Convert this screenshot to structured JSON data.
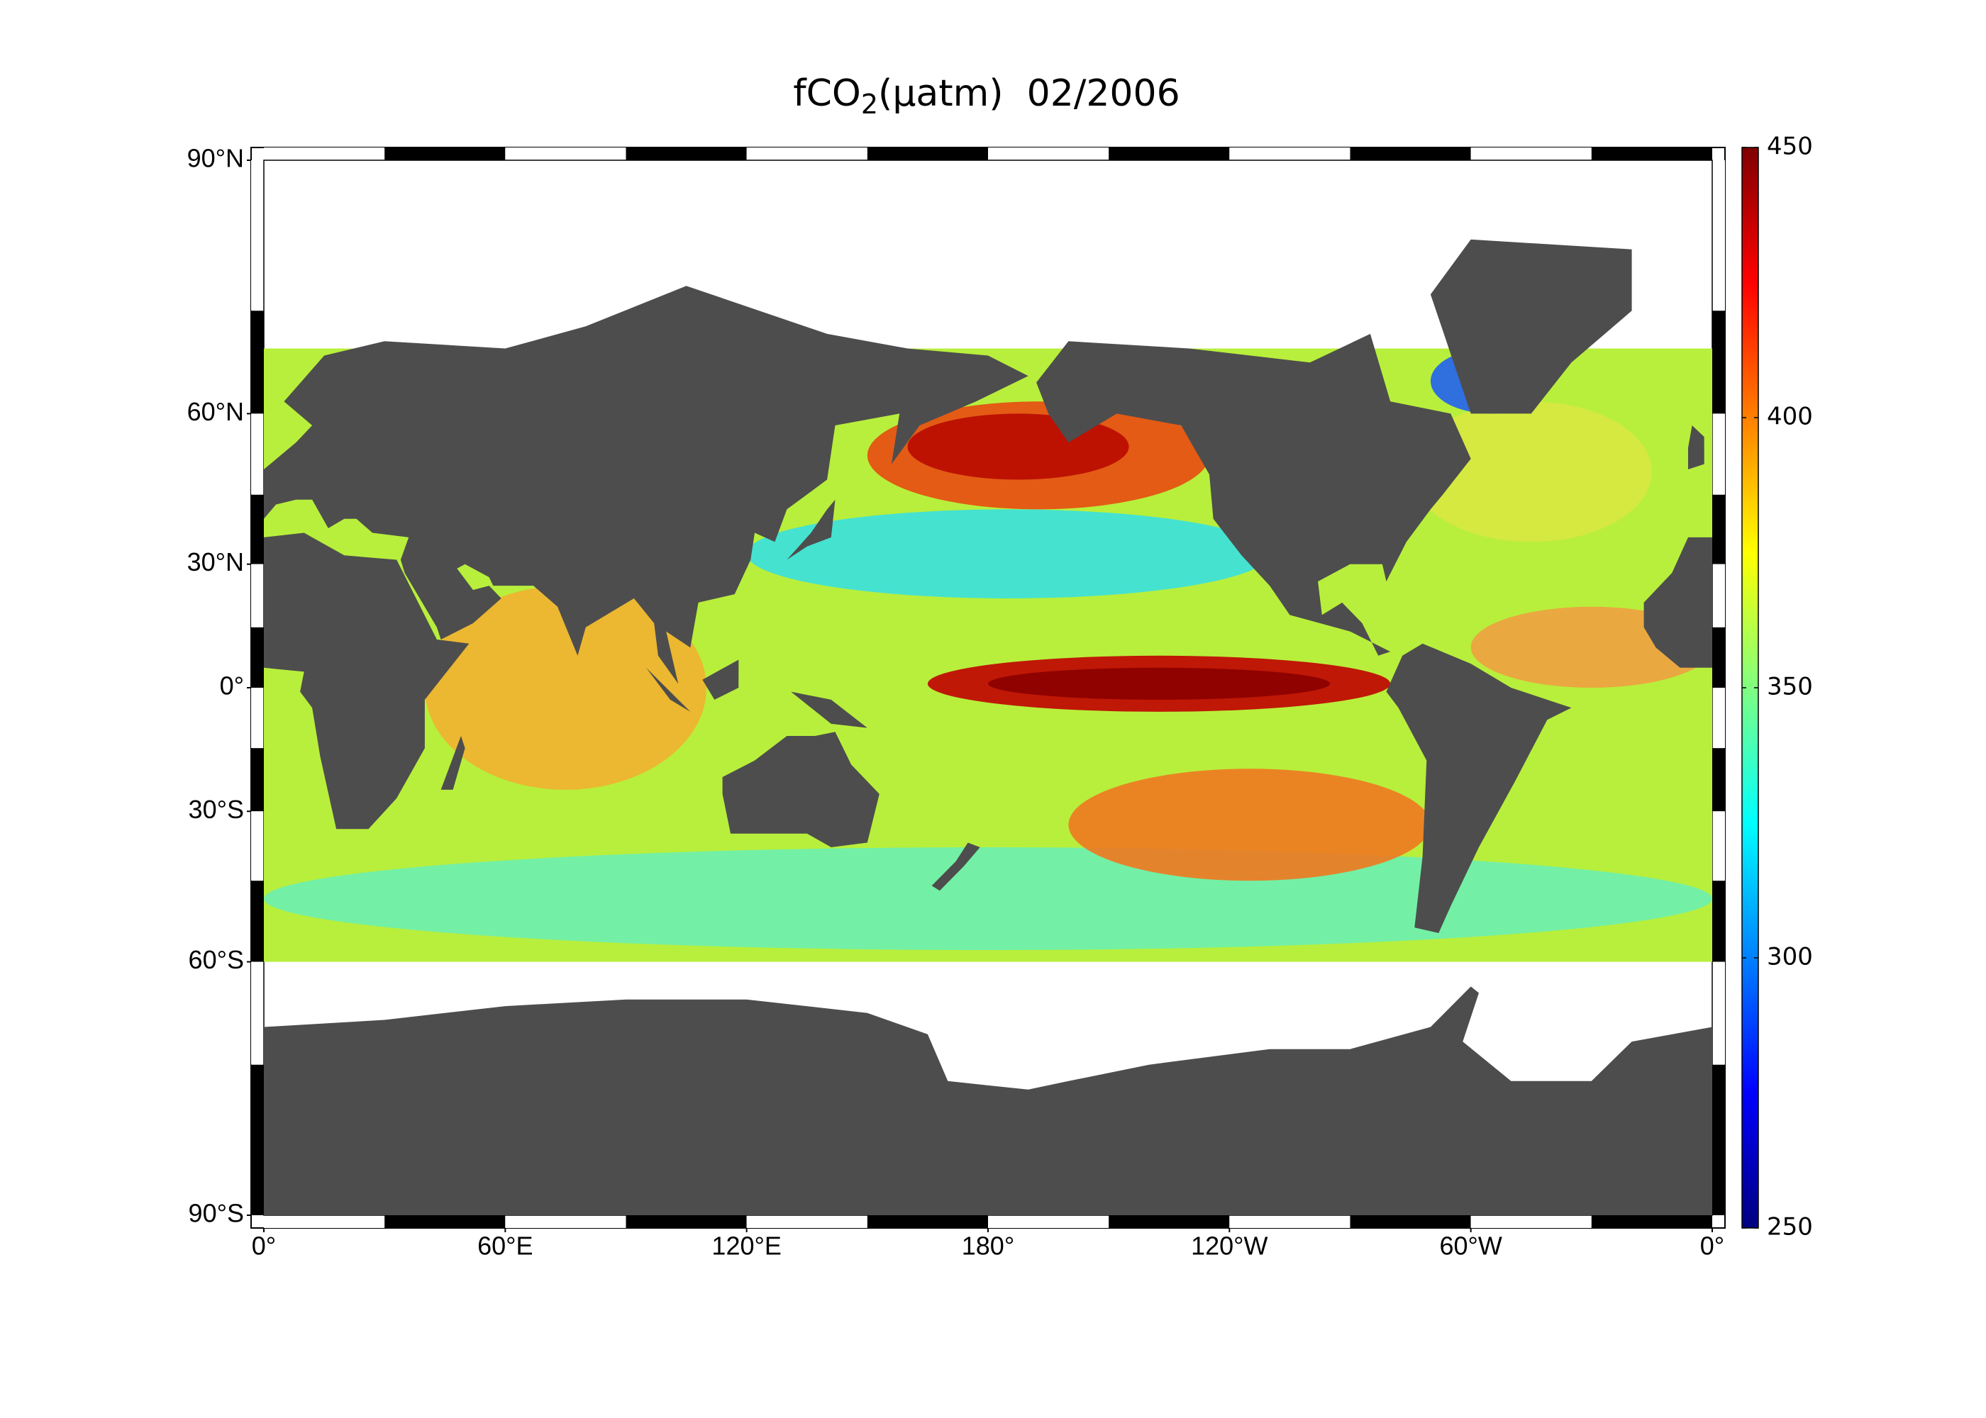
{
  "chart_data": {
    "type": "map",
    "title": {
      "main": "fCO",
      "subscript": "2",
      "rest": "(µatm)  02/2006"
    },
    "projection": "miller",
    "latlim": [
      -90,
      90
    ],
    "lonlim": [
      0,
      360
    ],
    "lat_ticks": [
      {
        "value": 90,
        "label": "90°N"
      },
      {
        "value": 60,
        "label": "60°N"
      },
      {
        "value": 30,
        "label": "30°N"
      },
      {
        "value": 0,
        "label": "0°"
      },
      {
        "value": -30,
        "label": "30°S"
      },
      {
        "value": -60,
        "label": "60°S"
      },
      {
        "value": -90,
        "label": "90°S"
      }
    ],
    "lon_ticks": [
      {
        "value": 0,
        "label": "0°"
      },
      {
        "value": 60,
        "label": "60°E"
      },
      {
        "value": 120,
        "label": "120°E"
      },
      {
        "value": 180,
        "label": "180°"
      },
      {
        "value": 240,
        "label": "120°W"
      },
      {
        "value": 300,
        "label": "60°W"
      },
      {
        "value": 360,
        "label": "0°"
      }
    ],
    "colorbar": {
      "colormap": "jet",
      "lim": [
        250,
        450
      ],
      "ticks": [
        250,
        300,
        350,
        400,
        450
      ]
    }
  }
}
